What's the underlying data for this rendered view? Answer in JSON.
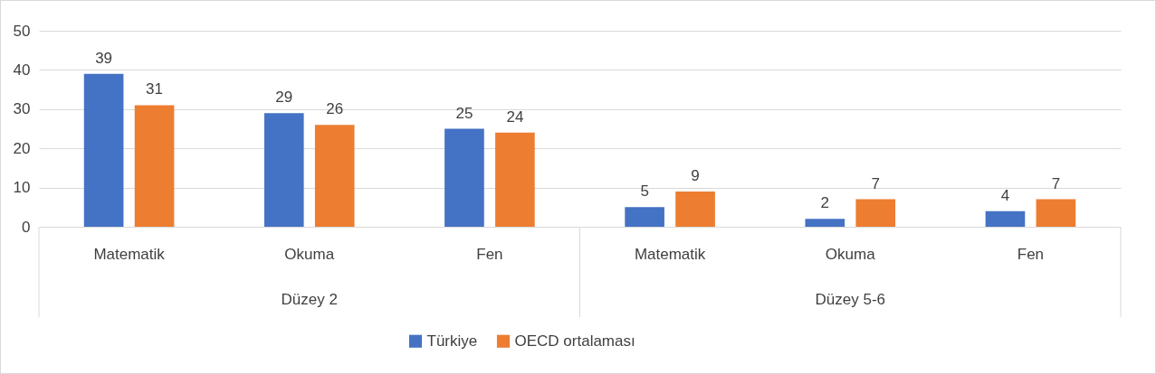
{
  "chart_data": {
    "type": "bar",
    "categories": [
      "Matematik",
      "Okuma",
      "Fen",
      "Matematik",
      "Okuma",
      "Fen"
    ],
    "series": [
      {
        "name": "Türkiye",
        "color": "#4472c4",
        "values": [
          39,
          29,
          25,
          5,
          2,
          4
        ]
      },
      {
        "name": "OECD ortalaması",
        "color": "#ed7d31",
        "values": [
          31,
          26,
          24,
          9,
          7,
          7
        ]
      }
    ],
    "annotations": [
      "Düzey 2",
      "Düzey 5-6"
    ],
    "ylim": [
      0,
      50
    ],
    "yticks": [
      0,
      10,
      20,
      30,
      40,
      50
    ],
    "grid": "y",
    "legend": "bottom",
    "data_labels": true
  }
}
